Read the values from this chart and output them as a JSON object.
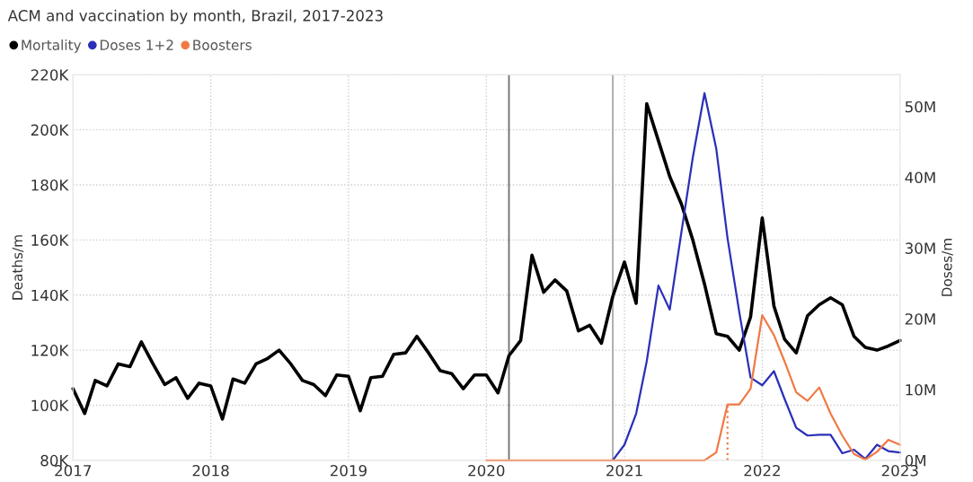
{
  "chart_data": {
    "type": "line",
    "title": "ACM and vaccination by month, Brazil, 2017-2023",
    "ylabel": "Deaths/m",
    "y2label": "Doses/m",
    "ylim": [
      80000,
      220000
    ],
    "yticks": [
      {
        "value": 80000,
        "label": "80K"
      },
      {
        "value": 100000,
        "label": "100K"
      },
      {
        "value": 120000,
        "label": "120K"
      },
      {
        "value": 140000,
        "label": "140K"
      },
      {
        "value": 160000,
        "label": "160K"
      },
      {
        "value": 180000,
        "label": "180K"
      },
      {
        "value": 200000,
        "label": "200K"
      },
      {
        "value": 220000,
        "label": "220K"
      }
    ],
    "y2lim": [
      0,
      54500000
    ],
    "y2ticks": [
      {
        "value": 0,
        "label": "0M"
      },
      {
        "value": 10000000,
        "label": "10M"
      },
      {
        "value": 20000000,
        "label": "20M"
      },
      {
        "value": 30000000,
        "label": "30M"
      },
      {
        "value": 40000000,
        "label": "40M"
      },
      {
        "value": 50000000,
        "label": "50M"
      }
    ],
    "xlim": [
      "2017-01",
      "2023-01"
    ],
    "xticks": [
      "2017",
      "2018",
      "2019",
      "2020",
      "2021",
      "2022",
      "2023"
    ],
    "grid": true,
    "legend": "top left",
    "marker": "none",
    "series": [
      {
        "name": "Mortality",
        "color": "#000000",
        "x": [
          "2017-01",
          "2017-02",
          "2017-03",
          "2017-04",
          "2017-05",
          "2017-06",
          "2017-07",
          "2017-08",
          "2017-09",
          "2017-10",
          "2017-11",
          "2017-12",
          "2018-01",
          "2018-02",
          "2018-03",
          "2018-04",
          "2018-05",
          "2018-06",
          "2018-07",
          "2018-08",
          "2018-09",
          "2018-10",
          "2018-11",
          "2018-12",
          "2019-01",
          "2019-02",
          "2019-03",
          "2019-04",
          "2019-05",
          "2019-06",
          "2019-07",
          "2019-08",
          "2019-09",
          "2019-10",
          "2019-11",
          "2019-12",
          "2020-01",
          "2020-02",
          "2020-03",
          "2020-04",
          "2020-05",
          "2020-06",
          "2020-07",
          "2020-08",
          "2020-09",
          "2020-10",
          "2020-11",
          "2020-12",
          "2021-01",
          "2021-02",
          "2021-03",
          "2021-04",
          "2021-05",
          "2021-06",
          "2021-07",
          "2021-08",
          "2021-09",
          "2021-10",
          "2021-11",
          "2021-12",
          "2022-01",
          "2022-02",
          "2022-03",
          "2022-04",
          "2022-05",
          "2022-06",
          "2022-07",
          "2022-08",
          "2022-09",
          "2022-10",
          "2022-11",
          "2022-12",
          "2023-01"
        ],
        "values": [
          106000,
          97000,
          109000,
          107000,
          115000,
          114000,
          123000,
          115000,
          107500,
          110000,
          102500,
          108000,
          107000,
          95000,
          109500,
          108000,
          115000,
          117000,
          120000,
          115000,
          109000,
          107500,
          103500,
          111000,
          110500,
          98000,
          110000,
          110500,
          118500,
          119000,
          125000,
          119000,
          112500,
          111500,
          106000,
          111000,
          111000,
          104500,
          118000,
          123500,
          154500,
          141000,
          145500,
          141500,
          127000,
          129000,
          122500,
          139500,
          152000,
          137000,
          209500,
          196000,
          183000,
          173000,
          160000,
          144000,
          126000,
          125000,
          120000,
          132000,
          168000,
          136000,
          124000,
          119000,
          132500,
          136500,
          139000,
          136500,
          125000,
          121000,
          120000,
          121500,
          123500
        ]
      },
      {
        "name": "Doses 1+2",
        "color": "#2b2fb8",
        "axis": "y2",
        "x": [
          "2020-12",
          "2021-01",
          "2021-02",
          "2021-03",
          "2021-04",
          "2021-05",
          "2021-06",
          "2021-07",
          "2021-08",
          "2021-09",
          "2021-10",
          "2021-11",
          "2021-12",
          "2022-01",
          "2022-02",
          "2022-03",
          "2022-04",
          "2022-05",
          "2022-06",
          "2022-07",
          "2022-08",
          "2022-09",
          "2022-10",
          "2022-11",
          "2022-12",
          "2023-01"
        ],
        "values": [
          0,
          2200000,
          6600000,
          14000000,
          24700000,
          21300000,
          32300000,
          42800000,
          51900000,
          44100000,
          31400000,
          21000000,
          11700000,
          10600000,
          12600000,
          8700000,
          4600000,
          3500000,
          3600000,
          3600000,
          1000000,
          1500000,
          200000,
          2200000,
          1300000,
          1100000
        ]
      },
      {
        "name": "Boosters",
        "color": "#f07a45",
        "axis": "y2",
        "x": [
          "2020-01",
          "2020-02",
          "2020-03",
          "2020-04",
          "2020-05",
          "2020-06",
          "2020-07",
          "2020-08",
          "2020-09",
          "2020-10",
          "2020-11",
          "2020-12",
          "2021-01",
          "2021-02",
          "2021-03",
          "2021-04",
          "2021-05",
          "2021-06",
          "2021-07",
          "2021-08",
          "2021-09",
          "2021-10",
          "2021-11",
          "2021-12",
          "2022-01",
          "2022-02",
          "2022-03",
          "2022-04",
          "2022-05",
          "2022-06",
          "2022-07",
          "2022-08",
          "2022-09",
          "2022-10",
          "2022-11",
          "2022-12",
          "2023-01"
        ],
        "values": [
          0,
          0,
          0,
          0,
          0,
          0,
          0,
          0,
          0,
          0,
          0,
          0,
          0,
          0,
          0,
          0,
          0,
          0,
          0,
          0,
          1100000,
          7900000,
          7900000,
          10100000,
          20500000,
          17700000,
          14000000,
          9600000,
          8400000,
          10300000,
          6600000,
          3500000,
          900000,
          100000,
          1200000,
          2900000,
          2200000
        ]
      },
      {
        "color": "#f07a45",
        "axis": "y2",
        "line_style": "dotted",
        "x": [
          "2021-10",
          "2021-10"
        ],
        "values": [
          0,
          7900000
        ]
      }
    ],
    "ref_lines": [
      {
        "axis": "x",
        "value": "2020-03",
        "color": "#6e6e6e"
      },
      {
        "axis": "x",
        "value": "2020-12",
        "color": "#a8a8a8"
      }
    ]
  }
}
